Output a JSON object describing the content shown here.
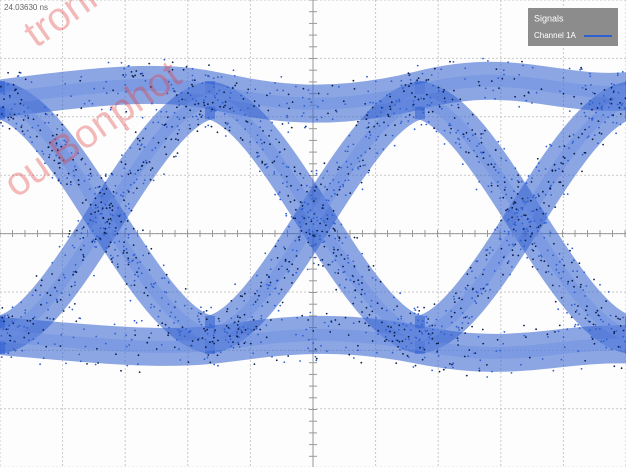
{
  "timestamp": "24.03630 ns",
  "legend": {
    "title": "Signals",
    "entries": [
      {
        "label": "Channel 1A",
        "color": "#2f5fd0"
      }
    ]
  },
  "watermark": [
    "tronics",
    "ou Bonphot"
  ]
}
